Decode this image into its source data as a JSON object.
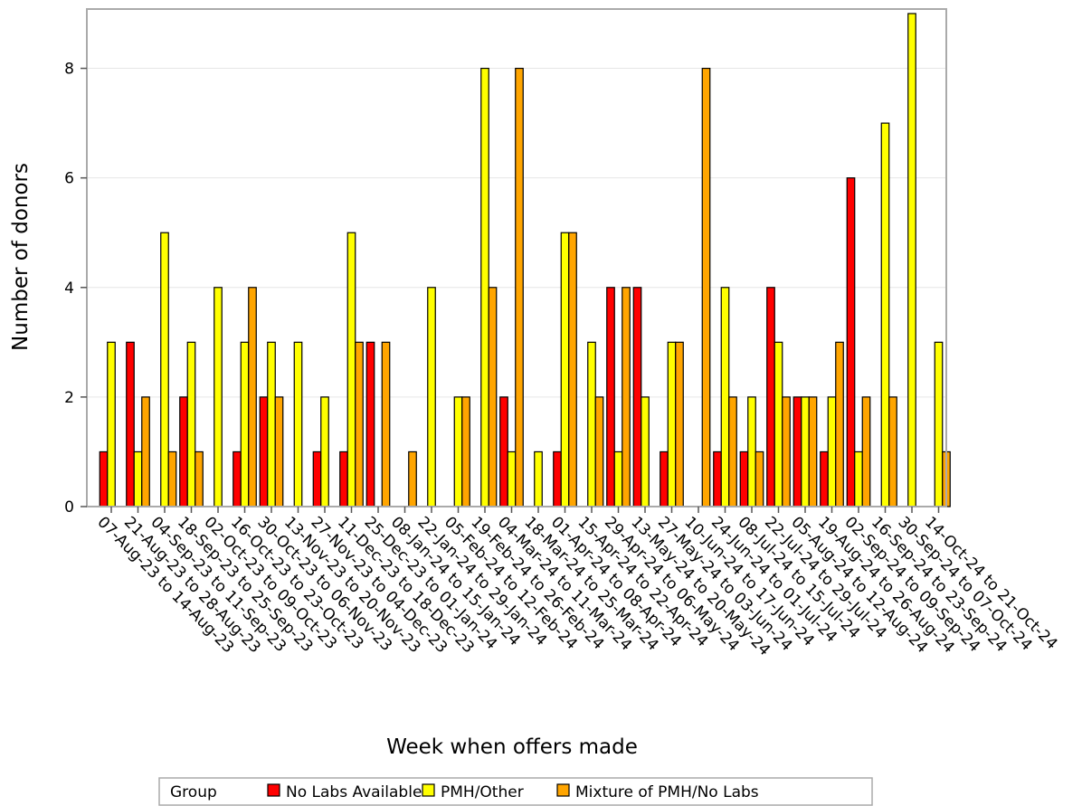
{
  "chart_data": {
    "type": "bar",
    "xlabel": "Week when offers made",
    "ylabel": "Number of donors",
    "ylim": [
      0,
      9
    ],
    "yticks": [
      0,
      2,
      4,
      6,
      8
    ],
    "grid": true,
    "legend_position": "bottom",
    "legend_title": "Group",
    "categories": [
      "07-Aug-23 to 14-Aug-23",
      "21-Aug-23 to 28-Aug-23",
      "04-Sep-23 to 11-Sep-23",
      "18-Sep-23 to 25-Sep-23",
      "02-Oct-23 to 09-Oct-23",
      "16-Oct-23 to 23-Oct-23",
      "30-Oct-23 to 06-Nov-23",
      "13-Nov-23 to 20-Nov-23",
      "27-Nov-23 to 04-Dec-23",
      "11-Dec-23 to 18-Dec-23",
      "25-Dec-23 to 01-Jan-24",
      "08-Jan-24 to 15-Jan-24",
      "22-Jan-24 to 29-Jan-24",
      "05-Feb-24 to 12-Feb-24",
      "19-Feb-24 to 26-Feb-24",
      "04-Mar-24 to 11-Mar-24",
      "18-Mar-24 to 25-Mar-24",
      "01-Apr-24 to 08-Apr-24",
      "15-Apr-24 to 22-Apr-24",
      "29-Apr-24 to 06-May-24",
      "13-May-24 to 20-May-24",
      "27-May-24 to 03-Jun-24",
      "10-Jun-24 to 17-Jun-24",
      "24-Jun-24 to 01-Jul-24",
      "08-Jul-24 to 15-Jul-24",
      "22-Jul-24 to 29-Jul-24",
      "05-Aug-24 to 12-Aug-24",
      "19-Aug-24 to 26-Aug-24",
      "02-Sep-24 to 09-Sep-24",
      "16-Sep-24 to 23-Sep-24",
      "30-Sep-24 to 07-Oct-24",
      "14-Oct-24 to 21-Oct-24"
    ],
    "series": [
      {
        "name": "No Labs Available",
        "color": "#ff0000",
        "values": [
          1,
          3,
          0,
          2,
          0,
          1,
          2,
          0,
          1,
          1,
          3,
          0,
          0,
          0,
          0,
          2,
          0,
          1,
          0,
          4,
          4,
          1,
          0,
          1,
          1,
          4,
          2,
          1,
          6,
          0,
          0,
          0
        ]
      },
      {
        "name": "PMH/Other",
        "color": "#ffff00",
        "values": [
          3,
          1,
          5,
          3,
          4,
          3,
          3,
          3,
          2,
          5,
          0,
          0,
          4,
          2,
          8,
          1,
          1,
          5,
          3,
          1,
          2,
          3,
          0,
          4,
          2,
          3,
          2,
          2,
          1,
          7,
          9,
          3
        ]
      },
      {
        "name": "Mixture of PMH/No Labs",
        "color": "#ffa500",
        "values": [
          0,
          2,
          1,
          1,
          0,
          4,
          2,
          0,
          0,
          3,
          3,
          1,
          0,
          2,
          4,
          8,
          0,
          5,
          2,
          4,
          0,
          3,
          8,
          2,
          1,
          2,
          2,
          3,
          2,
          2,
          0,
          1
        ]
      }
    ]
  }
}
